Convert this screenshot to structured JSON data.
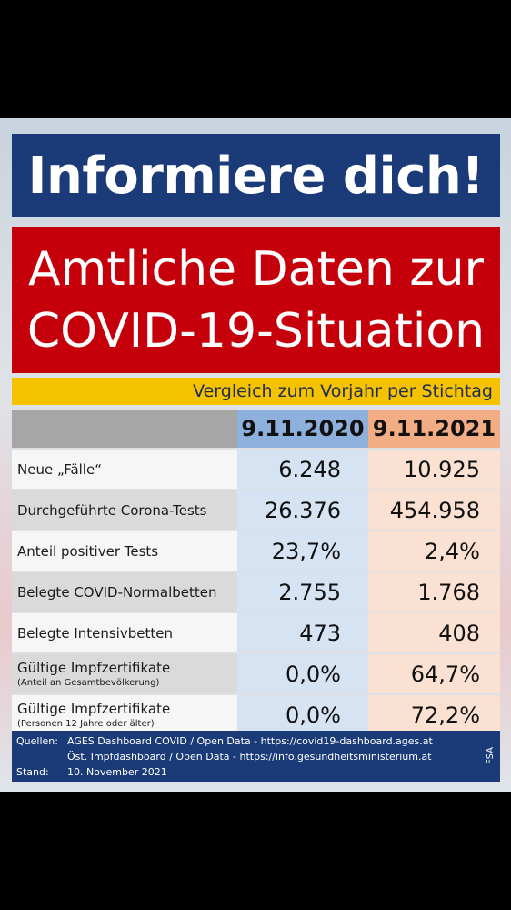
{
  "header": {
    "title": "Informiere dich!",
    "headline_line1": "Amtliche Daten zur",
    "headline_line2": "COVID-19-Situation",
    "subtitle": "Vergleich zum Vorjahr per Stichtag"
  },
  "table": {
    "columns": [
      "9.11.2020",
      "9.11.2021"
    ],
    "rows": [
      {
        "label": "Neue „Fälle“",
        "v2020": "6.248",
        "v2021": "10.925"
      },
      {
        "label": "Durchgeführte Corona-Tests",
        "v2020": "26.376",
        "v2021": "454.958"
      },
      {
        "label": "Anteil positiver Tests",
        "v2020": "23,7%",
        "v2021": "2,4%"
      },
      {
        "label": "Belegte COVID-Normalbetten",
        "v2020": "2.755",
        "v2021": "1.768"
      },
      {
        "label": "Belegte Intensivbetten",
        "v2020": "473",
        "v2021": "408"
      },
      {
        "label": "Gültige Impfzertifikate",
        "note": "(Anteil an Gesamtbevölkerung)",
        "v2020": "0,0%",
        "v2021": "64,7%"
      },
      {
        "label": "Gültige Impfzertifikate",
        "note": "(Personen 12 Jahre oder älter)",
        "v2020": "0,0%",
        "v2021": "72,2%"
      }
    ]
  },
  "footer": {
    "sources_key": "Quellen:",
    "source1": "AGES Dashboard COVID / Open Data - https://covid19-dashboard.ages.at",
    "source2": "Öst. Impfdashboard / Open Data - https://info.gesundheitsministerium.at",
    "date_key": "Stand:",
    "date": "10. November 2021",
    "credit": "FSA"
  },
  "colors": {
    "title_bg": "#1a3b78",
    "headline_bg": "#c5000b",
    "subtitle_bg": "#f5c200",
    "col2020_bg": "#8eb0dd",
    "col2021_bg": "#f2ad84"
  }
}
